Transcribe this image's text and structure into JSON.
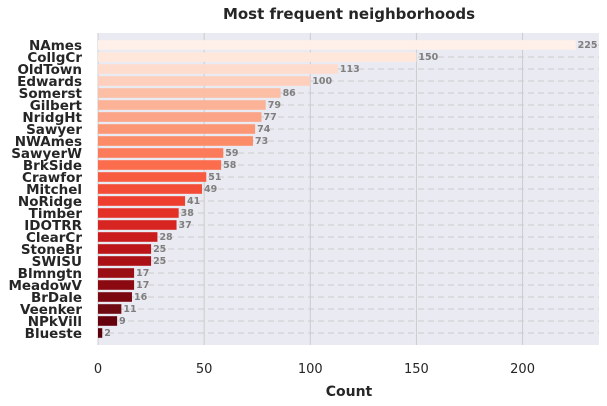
{
  "chart_data": {
    "type": "bar",
    "orientation": "horizontal",
    "title": "Most frequent neighborhoods",
    "xlabel": "Count",
    "ylabel": "",
    "xlim": [
      0,
      236
    ],
    "xticks": [
      0,
      50,
      100,
      150,
      200
    ],
    "grid": true,
    "background_color": "#eaeaf2",
    "colormap": "Reds",
    "categories": [
      "NAmes",
      "CollgCr",
      "OldTown",
      "Edwards",
      "Somerst",
      "Gilbert",
      "NridgHt",
      "Sawyer",
      "NWAmes",
      "SawyerW",
      "BrkSide",
      "Crawfor",
      "Mitchel",
      "NoRidge",
      "Timber",
      "IDOTRR",
      "ClearCr",
      "StoneBr",
      "SWISU",
      "Blmngtn",
      "MeadowV",
      "BrDale",
      "Veenker",
      "NPkVill",
      "Blueste"
    ],
    "values": [
      225,
      150,
      113,
      100,
      86,
      79,
      77,
      74,
      73,
      59,
      58,
      51,
      49,
      41,
      38,
      37,
      28,
      25,
      25,
      17,
      17,
      16,
      11,
      9,
      2
    ],
    "colors": [
      "#fff0e9",
      "#ffe7dc",
      "#fedccd",
      "#fdcfbc",
      "#fcbea5",
      "#fcb296",
      "#fca487",
      "#fc9776",
      "#fc8b68",
      "#fb7b5b",
      "#fb6d4d",
      "#f75b40",
      "#f34c37",
      "#ee3e2e",
      "#e33128",
      "#d72622",
      "#cb1c1d",
      "#bb151a",
      "#ab1016",
      "#9b0d14",
      "#8b0a12",
      "#7b0710",
      "#6f0a12",
      "#67000d",
      "#5a0009"
    ]
  }
}
